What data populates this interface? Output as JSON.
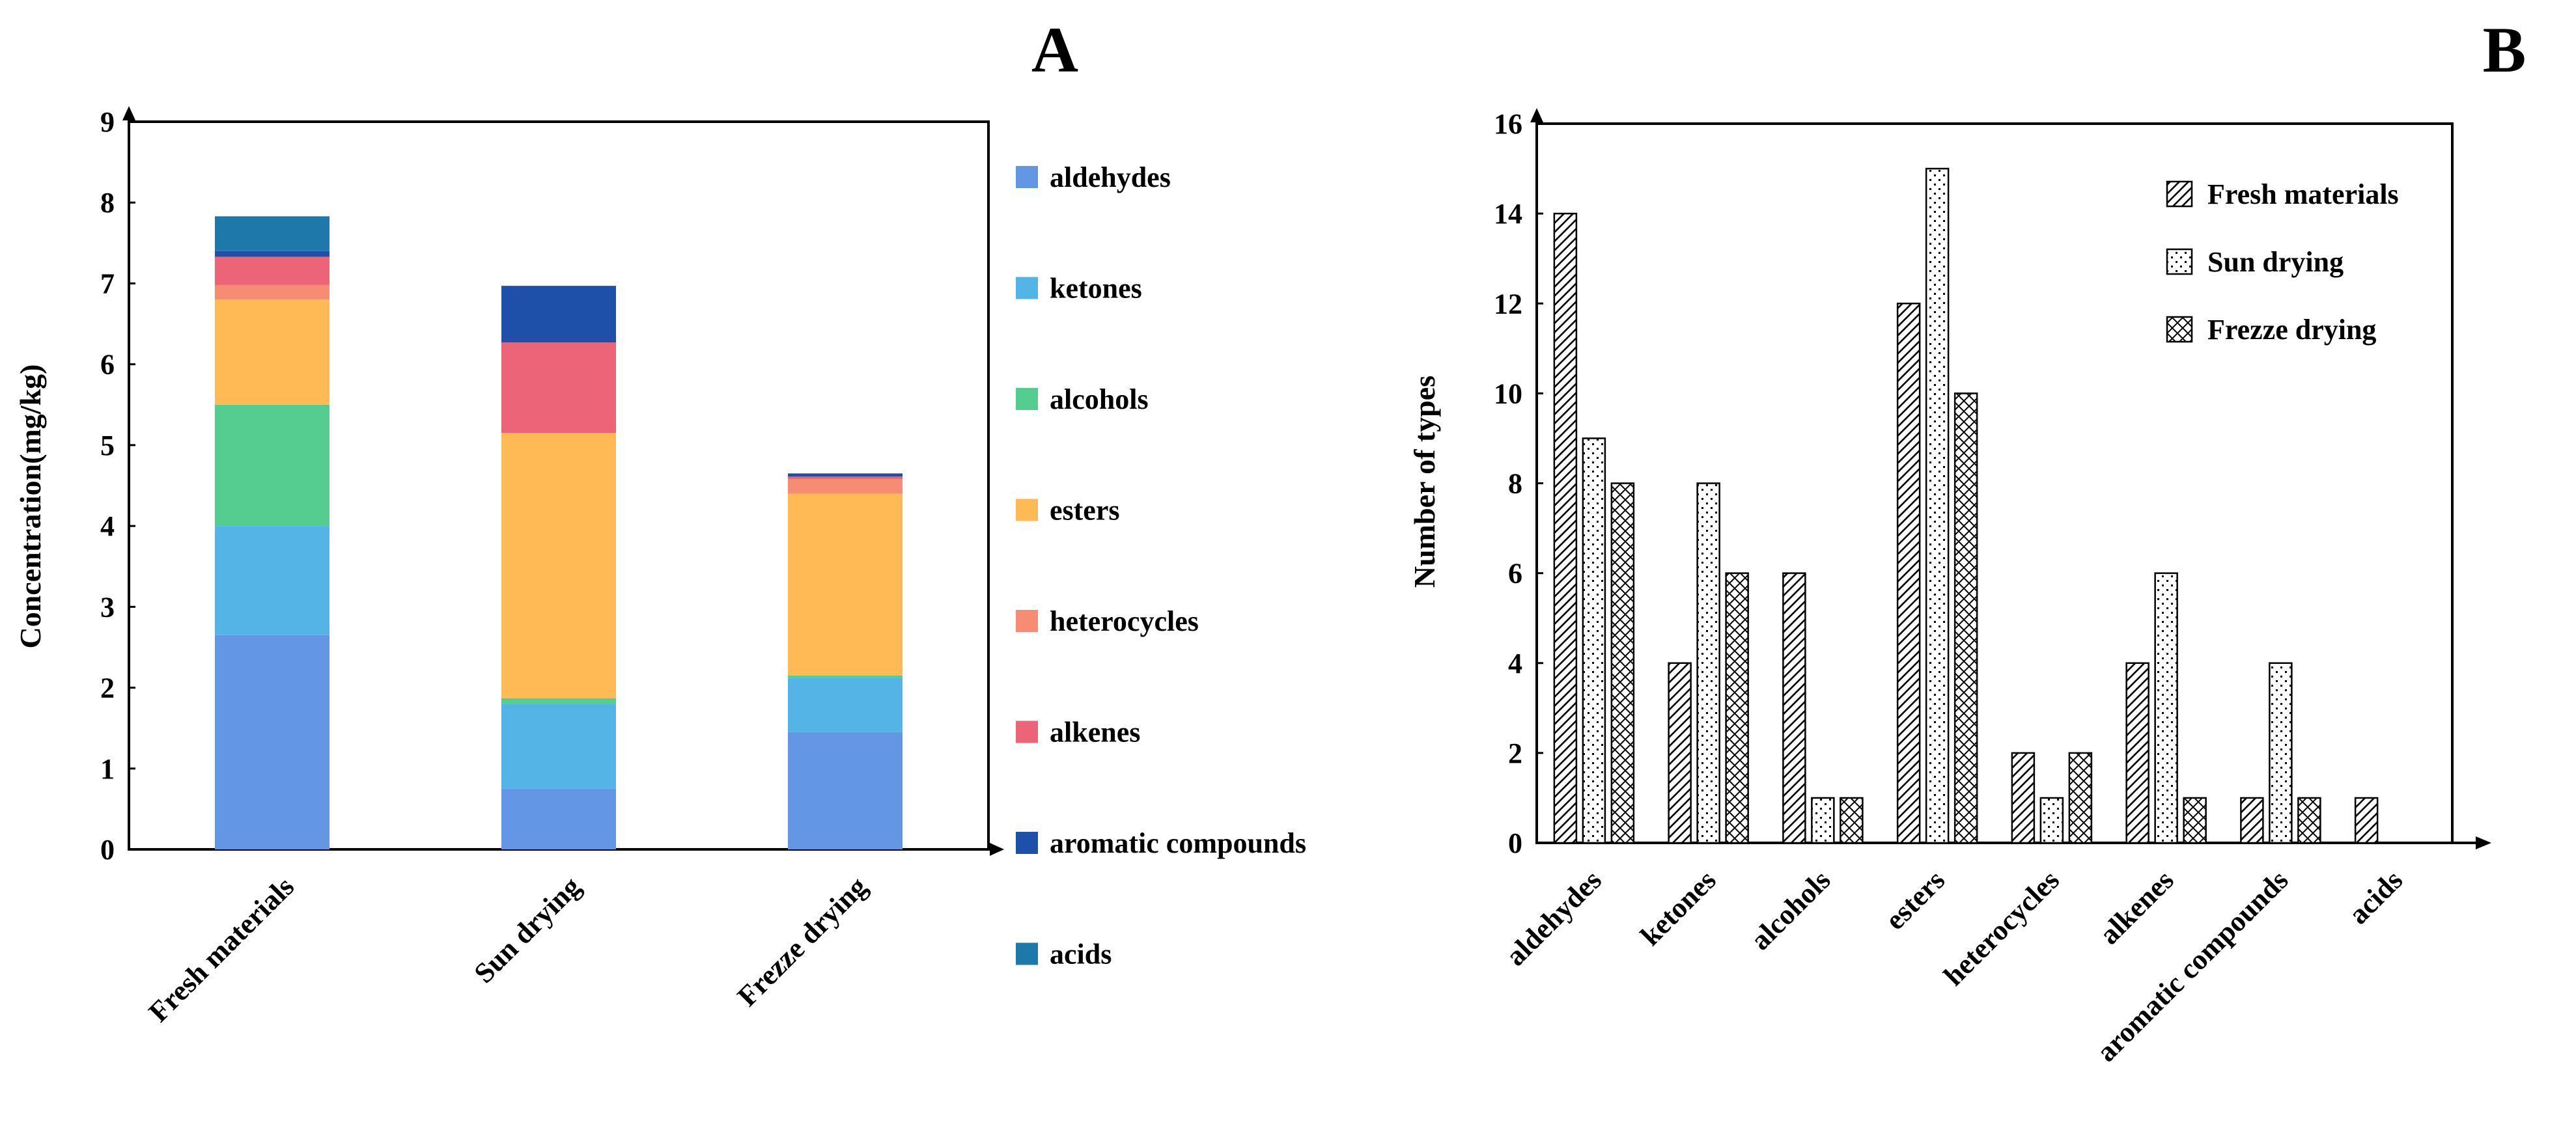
{
  "colors": {
    "aldehydes": "#6496E6",
    "ketones": "#55B4E6",
    "alcohols": "#55CD91",
    "esters": "#FFB955",
    "heterocycles": "#F58C73",
    "alkenes": "#EB6478",
    "aromatic compounds": "#1E50AA",
    "acids": "#1E78AA"
  },
  "chart_data": [
    {
      "panel": "A",
      "type": "bar",
      "stacked": true,
      "title": "",
      "xlabel": "",
      "ylabel": "Concentration(mg/kg)",
      "ylim": [
        0,
        9
      ],
      "yticks": [
        0,
        1,
        2,
        3,
        4,
        5,
        6,
        7,
        8,
        9
      ],
      "categories": [
        "Fresh materials",
        "Sun drying",
        "Frezze drying"
      ],
      "legend_position": "right",
      "series": [
        {
          "name": "aldehydes",
          "values": [
            2.65,
            0.75,
            1.45
          ]
        },
        {
          "name": "ketones",
          "values": [
            1.35,
            1.05,
            0.67
          ]
        },
        {
          "name": "alcohols",
          "values": [
            1.5,
            0.07,
            0.03
          ]
        },
        {
          "name": "esters",
          "values": [
            1.3,
            3.28,
            2.25
          ]
        },
        {
          "name": "heterocycles",
          "values": [
            0.18,
            0.0,
            0.18
          ]
        },
        {
          "name": "alkenes",
          "values": [
            0.35,
            1.12,
            0.03
          ]
        },
        {
          "name": "aromatic compounds",
          "values": [
            0.07,
            0.7,
            0.04
          ]
        },
        {
          "name": "acids",
          "values": [
            0.43,
            0.0,
            0.0
          ]
        }
      ]
    },
    {
      "panel": "B",
      "type": "bar",
      "stacked": false,
      "title": "",
      "xlabel": "",
      "ylabel": "Number of types",
      "ylim": [
        0,
        16
      ],
      "yticks": [
        0,
        2,
        4,
        6,
        8,
        10,
        12,
        14,
        16
      ],
      "categories": [
        "aldehydes",
        "ketones",
        "alcohols",
        "esters",
        "heterocycles",
        "alkenes",
        "aromatic compounds",
        "acids"
      ],
      "legend_position": "top-right",
      "series": [
        {
          "name": "Fresh materials",
          "pattern": "diagonal-hatch",
          "values": [
            14,
            4,
            6,
            12,
            2,
            4,
            1,
            1
          ]
        },
        {
          "name": "Sun drying",
          "pattern": "dots",
          "values": [
            9,
            8,
            1,
            15,
            1,
            6,
            4,
            0
          ]
        },
        {
          "name": "Frezze drying",
          "pattern": "cross-hatch",
          "values": [
            8,
            6,
            1,
            10,
            2,
            1,
            1,
            0
          ]
        }
      ]
    }
  ]
}
